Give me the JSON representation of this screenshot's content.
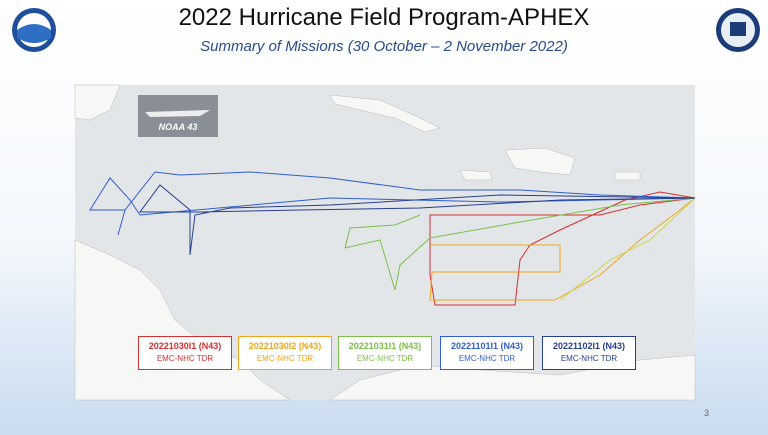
{
  "header": {
    "title": "2022 Hurricane Field Program-APHEX",
    "subtitle": "Summary of Missions (30 October – 2 November 2022)"
  },
  "map": {
    "aircraft_label": "NOAA 43",
    "missions": [
      {
        "id": "20221030I1 (N43)",
        "type": "EMC-NHC TDR",
        "color": "#d62f2f"
      },
      {
        "id": "20221030I2 (N43)",
        "type": "EMC-NHC TDR",
        "color": "#f2a51a"
      },
      {
        "id": "20221031I1 (N43)",
        "type": "EMC-NHC TDR",
        "color": "#7cc04a"
      },
      {
        "id": "20221101I1 (N43)",
        "type": "EMC-NHC TDR",
        "color": "#2f5fd0"
      },
      {
        "id": "20221102I1 (N43)",
        "type": "EMC-NHC TDR",
        "color": "#253f8f"
      }
    ]
  },
  "page_number": "3"
}
